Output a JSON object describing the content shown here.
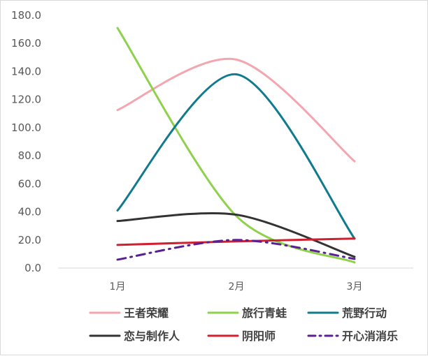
{
  "chart_data": {
    "type": "line",
    "smooth": true,
    "title": "",
    "xlabel": "",
    "ylabel": "",
    "categories": [
      "1月",
      "2月",
      "3月"
    ],
    "ylim": [
      0,
      180
    ],
    "yticks": [
      0,
      20,
      40,
      60,
      80,
      100,
      120,
      140,
      160,
      180
    ],
    "ytick_labels": [
      "0.0",
      "20.0",
      "40.0",
      "60.0",
      "80.0",
      "100.0",
      "120.0",
      "140.0",
      "160.0",
      "180.0"
    ],
    "grid": false,
    "legend": "bottom",
    "series": [
      {
        "name": "王者荣耀",
        "values": [
          112.5,
          148.5,
          76.0
        ],
        "color": "#f4a6b0",
        "dash": "solid"
      },
      {
        "name": "旅行青蛙",
        "values": [
          171.0,
          37.0,
          4.0
        ],
        "color": "#8ed24b",
        "dash": "solid"
      },
      {
        "name": "荒野行动",
        "values": [
          41.0,
          138.0,
          21.0
        ],
        "color": "#0f7b8c",
        "dash": "solid"
      },
      {
        "name": "恋与制作人",
        "values": [
          33.5,
          38.0,
          8.0
        ],
        "color": "#333333",
        "dash": "solid"
      },
      {
        "name": "阴阳师",
        "values": [
          16.5,
          19.0,
          21.0
        ],
        "color": "#d0202f",
        "dash": "solid"
      },
      {
        "name": "开心消消乐",
        "values": [
          6.0,
          20.0,
          6.5
        ],
        "color": "#5b1f94",
        "dash": "dashdot"
      }
    ]
  }
}
